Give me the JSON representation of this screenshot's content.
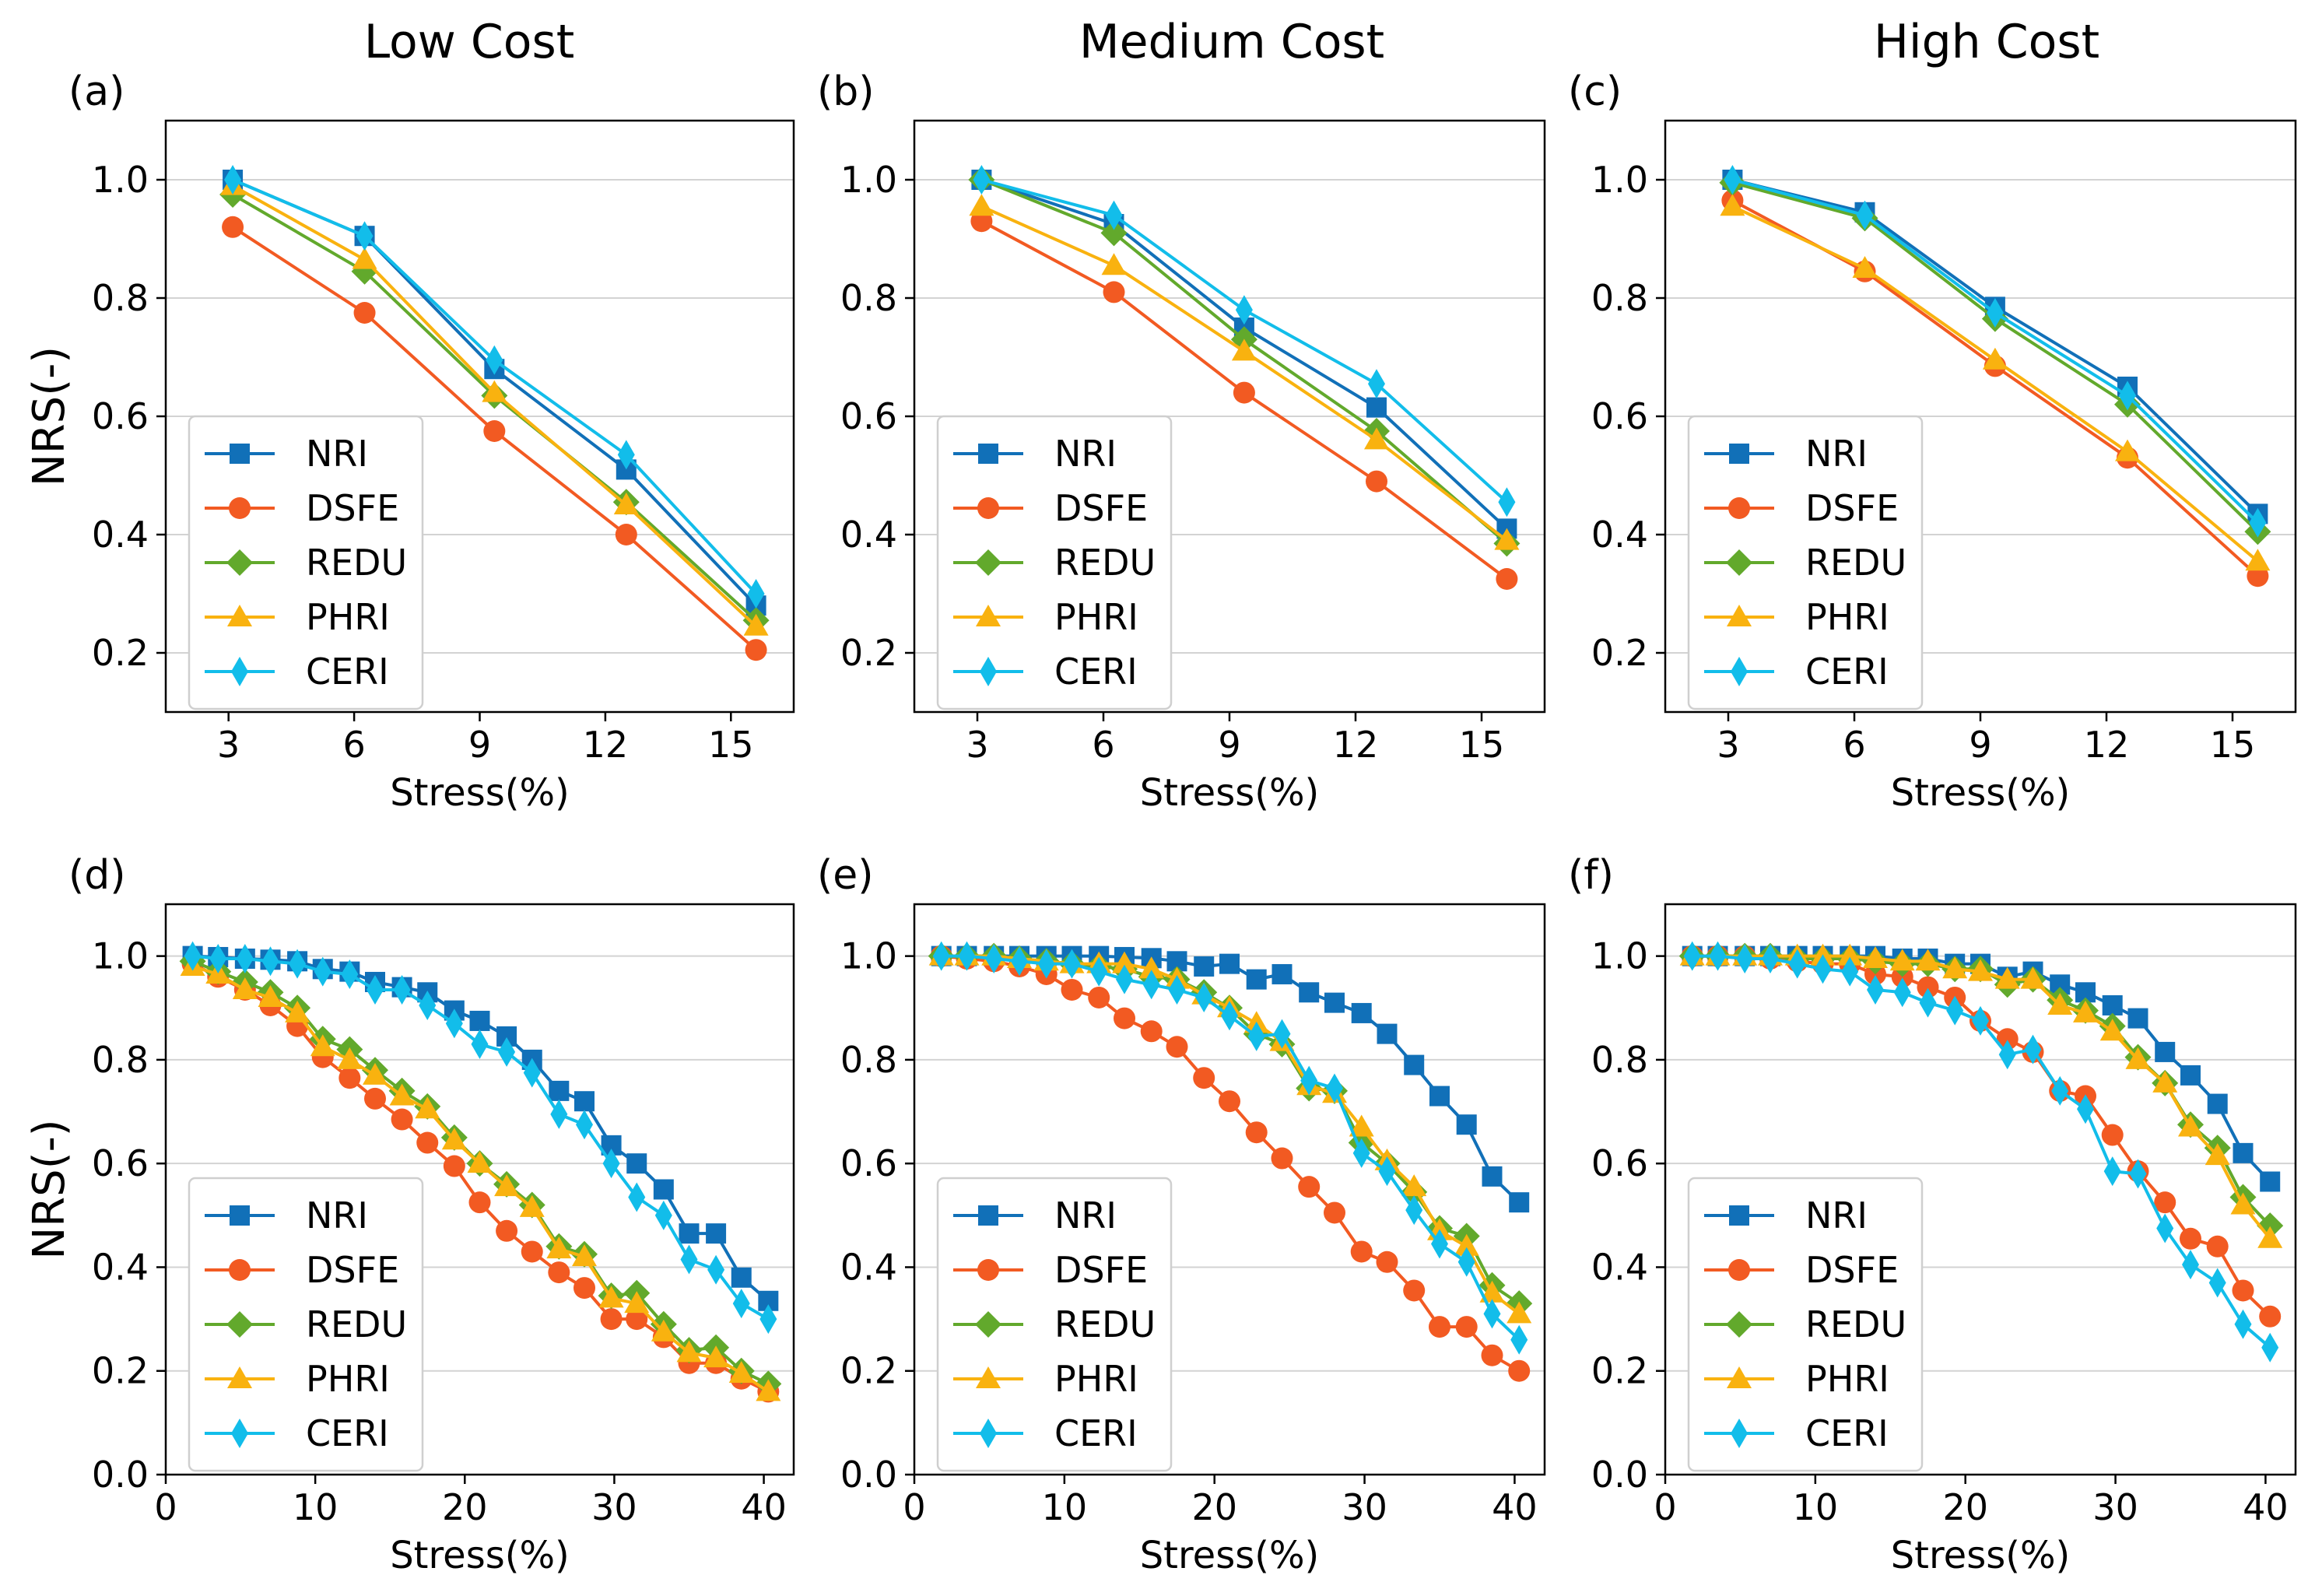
{
  "column_titles": [
    "Low Cost",
    "Medium Cost",
    "High Cost"
  ],
  "colors": {
    "NRI": "#1170b8",
    "DSFE": "#f25a22",
    "REDU": "#62a92c",
    "PHRI": "#f9b20f",
    "CERI": "#12bdea"
  },
  "chart_data": [
    {
      "label": "(a)",
      "type": "line",
      "xlabel": "Stress(%)",
      "ylabel": "NRS(-)",
      "xlim": [
        1.5,
        16.5
      ],
      "xticks": [
        3,
        6,
        9,
        12,
        15
      ],
      "ylim": [
        0.1,
        1.1
      ],
      "yticks": [
        0.2,
        0.4,
        0.6,
        0.8,
        1.0
      ],
      "ytick_labels": [
        "0.2",
        "0.4",
        "0.6",
        "0.8",
        "1.0"
      ],
      "x": [
        3.1,
        6.25,
        9.35,
        12.5,
        15.6
      ],
      "series": [
        {
          "name": "NRI",
          "marker": "square",
          "values": [
            1.0,
            0.905,
            0.68,
            0.51,
            0.28
          ]
        },
        {
          "name": "DSFE",
          "marker": "circle",
          "values": [
            0.92,
            0.775,
            0.575,
            0.4,
            0.205
          ]
        },
        {
          "name": "REDU",
          "marker": "diamond",
          "values": [
            0.975,
            0.845,
            0.635,
            0.455,
            0.255
          ]
        },
        {
          "name": "PHRI",
          "marker": "triangle",
          "values": [
            0.99,
            0.865,
            0.64,
            0.45,
            0.245
          ]
        },
        {
          "name": "CERI",
          "marker": "thin_diamond",
          "values": [
            1.0,
            0.905,
            0.695,
            0.535,
            0.3
          ]
        }
      ]
    },
    {
      "label": "(b)",
      "type": "line",
      "xlabel": "Stress(%)",
      "ylabel": "",
      "xlim": [
        1.5,
        16.5
      ],
      "xticks": [
        3,
        6,
        9,
        12,
        15
      ],
      "ylim": [
        0.1,
        1.1
      ],
      "yticks": [
        0.2,
        0.4,
        0.6,
        0.8,
        1.0
      ],
      "ytick_labels": [
        "0.2",
        "0.4",
        "0.6",
        "0.8",
        "1.0"
      ],
      "x": [
        3.1,
        6.25,
        9.35,
        12.5,
        15.6
      ],
      "series": [
        {
          "name": "NRI",
          "marker": "square",
          "values": [
            1.0,
            0.925,
            0.75,
            0.615,
            0.41
          ]
        },
        {
          "name": "DSFE",
          "marker": "circle",
          "values": [
            0.93,
            0.81,
            0.64,
            0.49,
            0.325
          ]
        },
        {
          "name": "REDU",
          "marker": "diamond",
          "values": [
            1.0,
            0.91,
            0.73,
            0.575,
            0.385
          ]
        },
        {
          "name": "PHRI",
          "marker": "triangle",
          "values": [
            0.955,
            0.855,
            0.71,
            0.56,
            0.39
          ]
        },
        {
          "name": "CERI",
          "marker": "thin_diamond",
          "values": [
            1.0,
            0.94,
            0.78,
            0.655,
            0.455
          ]
        }
      ]
    },
    {
      "label": "(c)",
      "type": "line",
      "xlabel": "Stress(%)",
      "ylabel": "",
      "xlim": [
        1.5,
        16.5
      ],
      "xticks": [
        3,
        6,
        9,
        12,
        15
      ],
      "ylim": [
        0.1,
        1.1
      ],
      "yticks": [
        0.2,
        0.4,
        0.6,
        0.8,
        1.0
      ],
      "ytick_labels": [
        "0.2",
        "0.4",
        "0.6",
        "0.8",
        "1.0"
      ],
      "x": [
        3.1,
        6.25,
        9.35,
        12.5,
        15.6
      ],
      "series": [
        {
          "name": "NRI",
          "marker": "square",
          "values": [
            1.0,
            0.945,
            0.785,
            0.65,
            0.435
          ]
        },
        {
          "name": "DSFE",
          "marker": "circle",
          "values": [
            0.965,
            0.845,
            0.685,
            0.53,
            0.33
          ]
        },
        {
          "name": "REDU",
          "marker": "diamond",
          "values": [
            0.995,
            0.935,
            0.765,
            0.62,
            0.405
          ]
        },
        {
          "name": "PHRI",
          "marker": "triangle",
          "values": [
            0.955,
            0.85,
            0.695,
            0.54,
            0.355
          ]
        },
        {
          "name": "CERI",
          "marker": "thin_diamond",
          "values": [
            1.0,
            0.94,
            0.775,
            0.635,
            0.42
          ]
        }
      ]
    },
    {
      "label": "(d)",
      "type": "line",
      "xlabel": "Stress(%)",
      "ylabel": "NRS(-)",
      "xlim": [
        0,
        42
      ],
      "xticks": [
        0,
        10,
        20,
        30,
        40
      ],
      "ylim": [
        0.0,
        1.1
      ],
      "yticks": [
        0.0,
        0.2,
        0.4,
        0.6,
        0.8,
        1.0
      ],
      "ytick_labels": [
        "0.0",
        "0.2",
        "0.4",
        "0.6",
        "0.8",
        "1.0"
      ],
      "x": [
        1.8,
        3.5,
        5.3,
        7.0,
        8.8,
        10.5,
        12.3,
        14.0,
        15.8,
        17.5,
        19.3,
        21.0,
        22.8,
        24.5,
        26.3,
        28.0,
        29.8,
        31.5,
        33.3,
        35.0,
        36.8,
        38.5,
        40.3
      ],
      "series": [
        {
          "name": "NRI",
          "marker": "square",
          "values": [
            1.0,
            0.998,
            0.995,
            0.993,
            0.99,
            0.975,
            0.97,
            0.95,
            0.94,
            0.93,
            0.895,
            0.875,
            0.845,
            0.8,
            0.74,
            0.72,
            0.635,
            0.6,
            0.55,
            0.465,
            0.465,
            0.38,
            0.335
          ]
        },
        {
          "name": "DSFE",
          "marker": "circle",
          "values": [
            0.985,
            0.96,
            0.935,
            0.905,
            0.865,
            0.805,
            0.765,
            0.725,
            0.685,
            0.64,
            0.595,
            0.525,
            0.47,
            0.43,
            0.39,
            0.36,
            0.3,
            0.3,
            0.265,
            0.215,
            0.215,
            0.185,
            0.16
          ]
        },
        {
          "name": "REDU",
          "marker": "diamond",
          "values": [
            0.99,
            0.97,
            0.95,
            0.93,
            0.9,
            0.84,
            0.82,
            0.78,
            0.74,
            0.71,
            0.65,
            0.6,
            0.56,
            0.52,
            0.44,
            0.425,
            0.345,
            0.35,
            0.29,
            0.24,
            0.245,
            0.2,
            0.175
          ]
        },
        {
          "name": "PHRI",
          "marker": "triangle",
          "values": [
            0.98,
            0.965,
            0.935,
            0.92,
            0.89,
            0.825,
            0.8,
            0.77,
            0.73,
            0.705,
            0.645,
            0.6,
            0.555,
            0.515,
            0.435,
            0.42,
            0.34,
            0.33,
            0.275,
            0.235,
            0.225,
            0.195,
            0.16
          ]
        },
        {
          "name": "CERI",
          "marker": "thin_diamond",
          "values": [
            1.0,
            0.995,
            0.995,
            0.99,
            0.985,
            0.97,
            0.965,
            0.935,
            0.935,
            0.905,
            0.87,
            0.83,
            0.815,
            0.775,
            0.695,
            0.675,
            0.6,
            0.535,
            0.5,
            0.415,
            0.395,
            0.33,
            0.3
          ]
        }
      ]
    },
    {
      "label": "(e)",
      "type": "line",
      "xlabel": "Stress(%)",
      "ylabel": "",
      "xlim": [
        0,
        42
      ],
      "xticks": [
        0,
        10,
        20,
        30,
        40
      ],
      "ylim": [
        0.0,
        1.1
      ],
      "yticks": [
        0.0,
        0.2,
        0.4,
        0.6,
        0.8,
        1.0
      ],
      "ytick_labels": [
        "0.0",
        "0.2",
        "0.4",
        "0.6",
        "0.8",
        "1.0"
      ],
      "x": [
        1.8,
        3.5,
        5.3,
        7.0,
        8.8,
        10.5,
        12.3,
        14.0,
        15.8,
        17.5,
        19.3,
        21.0,
        22.8,
        24.5,
        26.3,
        28.0,
        29.8,
        31.5,
        33.3,
        35.0,
        36.8,
        38.5,
        40.3
      ],
      "series": [
        {
          "name": "NRI",
          "marker": "square",
          "values": [
            1.0,
            1.0,
            1.0,
            1.0,
            1.0,
            1.0,
            1.0,
            0.998,
            0.996,
            0.99,
            0.98,
            0.985,
            0.955,
            0.965,
            0.93,
            0.91,
            0.89,
            0.85,
            0.79,
            0.73,
            0.675,
            0.575,
            0.525
          ]
        },
        {
          "name": "DSFE",
          "marker": "circle",
          "values": [
            1.0,
            0.995,
            0.99,
            0.98,
            0.965,
            0.935,
            0.92,
            0.88,
            0.855,
            0.825,
            0.765,
            0.72,
            0.66,
            0.61,
            0.555,
            0.505,
            0.43,
            0.41,
            0.355,
            0.285,
            0.285,
            0.23,
            0.2
          ]
        },
        {
          "name": "REDU",
          "marker": "diamond",
          "values": [
            1.0,
            1.0,
            1.0,
            0.995,
            0.99,
            0.985,
            0.98,
            0.975,
            0.96,
            0.955,
            0.93,
            0.9,
            0.85,
            0.83,
            0.745,
            0.74,
            0.64,
            0.6,
            0.545,
            0.475,
            0.46,
            0.365,
            0.33
          ]
        },
        {
          "name": "PHRI",
          "marker": "triangle",
          "values": [
            1.0,
            1.0,
            1.0,
            0.995,
            0.99,
            0.985,
            0.985,
            0.985,
            0.975,
            0.955,
            0.925,
            0.9,
            0.87,
            0.835,
            0.75,
            0.735,
            0.67,
            0.605,
            0.555,
            0.47,
            0.44,
            0.35,
            0.31
          ]
        },
        {
          "name": "CERI",
          "marker": "thin_diamond",
          "values": [
            1.0,
            1.0,
            0.995,
            0.99,
            0.985,
            0.985,
            0.97,
            0.955,
            0.945,
            0.935,
            0.92,
            0.885,
            0.845,
            0.85,
            0.76,
            0.745,
            0.62,
            0.585,
            0.51,
            0.445,
            0.41,
            0.31,
            0.26
          ]
        }
      ]
    },
    {
      "label": "(f)",
      "type": "line",
      "xlabel": "Stress(%)",
      "ylabel": "",
      "xlim": [
        0,
        42
      ],
      "xticks": [
        0,
        10,
        20,
        30,
        40
      ],
      "ylim": [
        0.0,
        1.1
      ],
      "yticks": [
        0.0,
        0.2,
        0.4,
        0.6,
        0.8,
        1.0
      ],
      "ytick_labels": [
        "0.0",
        "0.2",
        "0.4",
        "0.6",
        "0.8",
        "1.0"
      ],
      "x": [
        1.8,
        3.5,
        5.3,
        7.0,
        8.8,
        10.5,
        12.3,
        14.0,
        15.8,
        17.5,
        19.3,
        21.0,
        22.8,
        24.5,
        26.3,
        28.0,
        29.8,
        31.5,
        33.3,
        35.0,
        36.8,
        38.5,
        40.3
      ],
      "series": [
        {
          "name": "NRI",
          "marker": "square",
          "values": [
            1.0,
            1.0,
            1.0,
            1.0,
            1.0,
            1.0,
            1.0,
            1.0,
            0.995,
            0.995,
            0.985,
            0.985,
            0.96,
            0.97,
            0.945,
            0.93,
            0.905,
            0.88,
            0.815,
            0.77,
            0.715,
            0.62,
            0.565
          ]
        },
        {
          "name": "DSFE",
          "marker": "circle",
          "values": [
            1.0,
            1.0,
            1.0,
            0.995,
            0.99,
            0.985,
            0.985,
            0.965,
            0.96,
            0.94,
            0.92,
            0.875,
            0.84,
            0.815,
            0.74,
            0.73,
            0.655,
            0.585,
            0.525,
            0.455,
            0.44,
            0.355,
            0.305
          ]
        },
        {
          "name": "REDU",
          "marker": "diamond",
          "values": [
            1.0,
            1.0,
            1.0,
            1.0,
            0.995,
            0.995,
            0.995,
            0.99,
            0.985,
            0.985,
            0.975,
            0.975,
            0.945,
            0.955,
            0.915,
            0.895,
            0.865,
            0.805,
            0.755,
            0.675,
            0.63,
            0.535,
            0.48
          ]
        },
        {
          "name": "PHRI",
          "marker": "triangle",
          "values": [
            1.0,
            1.0,
            1.0,
            1.0,
            1.0,
            1.0,
            1.0,
            0.995,
            0.99,
            0.99,
            0.975,
            0.97,
            0.955,
            0.955,
            0.905,
            0.89,
            0.855,
            0.8,
            0.755,
            0.67,
            0.615,
            0.52,
            0.455
          ]
        },
        {
          "name": "CERI",
          "marker": "thin_diamond",
          "values": [
            1.0,
            1.0,
            0.995,
            0.995,
            0.985,
            0.975,
            0.97,
            0.935,
            0.93,
            0.91,
            0.895,
            0.875,
            0.81,
            0.82,
            0.74,
            0.705,
            0.585,
            0.58,
            0.475,
            0.405,
            0.37,
            0.29,
            0.245
          ]
        }
      ]
    }
  ]
}
